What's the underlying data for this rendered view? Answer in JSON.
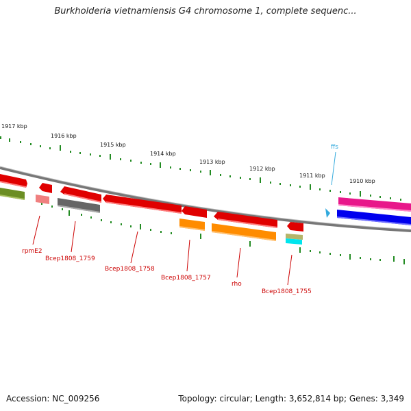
{
  "header": {
    "title": "Burkholderia vietnamiensis G4 chromosome 1, complete sequenc..."
  },
  "footer": {
    "accession": "Accession: NC_009256",
    "summary": "Topology: circular; Length: 3,652,814 bp; Genes: 3,349"
  },
  "map": {
    "kbp_labels": [
      "1917 kbp",
      "1916 kbp",
      "1915 kbp",
      "1914 kbp",
      "1913 kbp",
      "1912 kbp",
      "1911 kbp",
      "1910 kbp"
    ],
    "gene_labels": [
      "rpmE2",
      "Bcep1808_1759",
      "Bcep1808_1758",
      "Bcep1808_1757",
      "rho",
      "Bcep1808_1755"
    ],
    "rna_labels": [
      "ffs"
    ]
  },
  "colors": {
    "backbone": "#808080",
    "tick": "#228b22",
    "gene_red": "#ee0000",
    "label_red": "#cc0000",
    "rna_cyan": "#33aadd",
    "orange": "#ff8c00",
    "gray_gene": "#666666",
    "green_gene": "#6b8e23",
    "magenta_gene": "#e8178a",
    "blue_gene": "#0000ee",
    "pink_gene": "#f08080",
    "cyan_gene": "#00e5ee",
    "olive_gene": "#b5b56a"
  }
}
